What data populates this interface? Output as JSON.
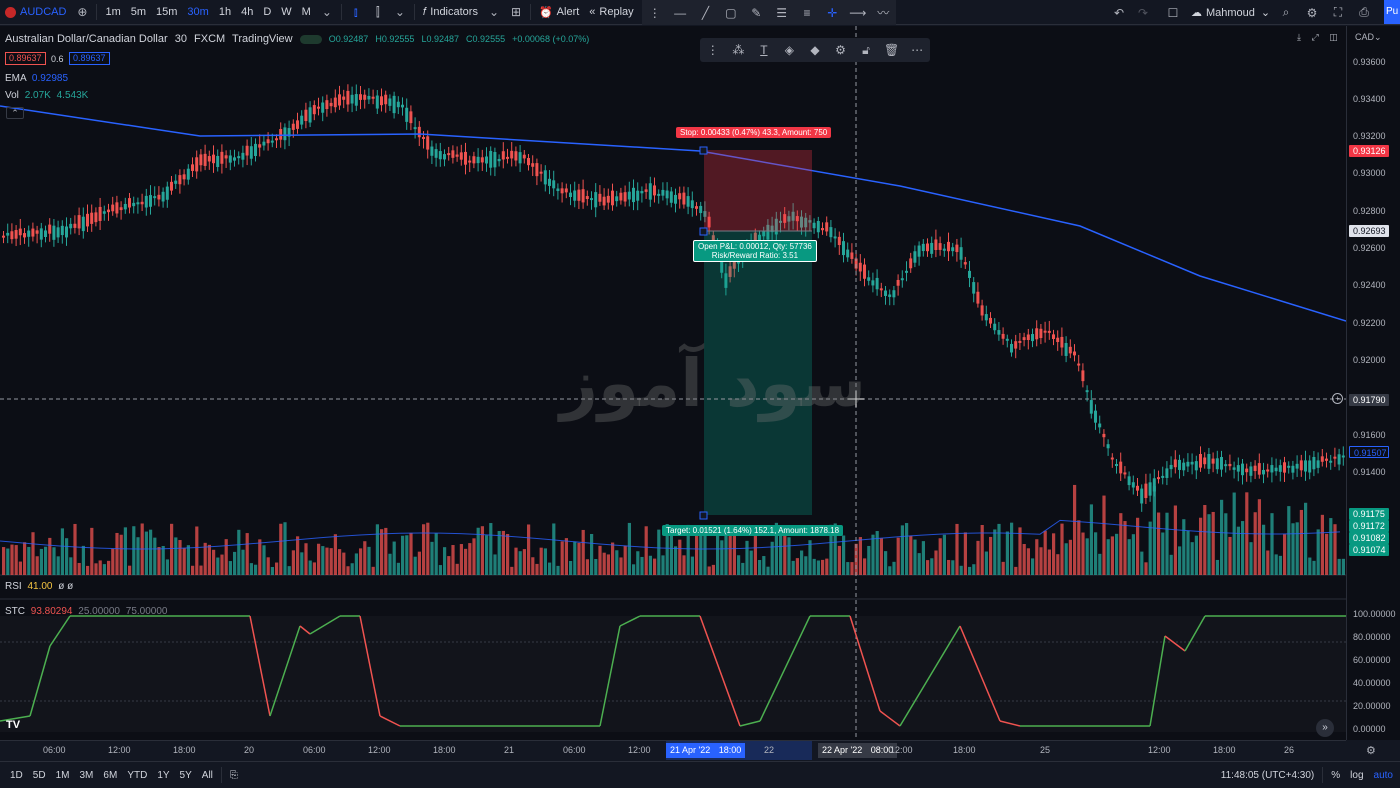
{
  "toolbar": {
    "symbol": "AUDCAD",
    "timeframes": [
      "1m",
      "5m",
      "15m",
      "30m",
      "1h",
      "4h",
      "D",
      "W",
      "M"
    ],
    "active_timeframe": "30m",
    "indicators_label": "Indicators",
    "alert_label": "Alert",
    "replay_label": "Replay",
    "user_name": "Mahmoud",
    "publish_label": "Pu"
  },
  "legend": {
    "instrument": "Australian Dollar/Canadian Dollar",
    "interval": "30",
    "source": "FXCM",
    "platform": "TradingView",
    "open": "O0.92487",
    "high": "H0.92555",
    "low": "L0.92487",
    "close": "C0.92555",
    "change": "+0.00068 (+0.07%)",
    "bid": "0.89637",
    "spread": "0.6",
    "ask": "0.89637"
  },
  "indicators": {
    "ema_label": "EMA",
    "ema_value": "0.92985",
    "vol_label": "Vol",
    "vol_value1": "2.07K",
    "vol_value2": "4.543K",
    "rsi_label": "RSI",
    "rsi_value": "41.00",
    "rsi_extra": "ø ø",
    "stc_label": "STC",
    "stc_value": "93.80294",
    "stc_param1": "25.00000",
    "stc_param2": "75.00000"
  },
  "position": {
    "stop_label": "Stop: 0.00433 (0.47%) 43.3, Amount: 750",
    "open_label_line1": "Open P&L: 0.00012, Qty: 57736",
    "open_label_line2": "Risk/Reward Ratio: 3.51",
    "target_label": "Target: 0.01521 (1.64%) 152.1, Amount: 1878.18"
  },
  "watermark": "سود آموز",
  "price_scale": {
    "currency": "CAD",
    "labels": [
      "0.93600",
      "0.93400",
      "0.93200",
      "0.93000",
      "0.92800",
      "0.92600",
      "0.92400",
      "0.92200",
      "0.92000",
      "0.91600",
      "0.91400"
    ],
    "stop_tag": "0.93126",
    "current_tag": "0.92693",
    "crosshair_tag": "0.91790",
    "ema_tag": "0.91507",
    "vol_tags": [
      "0.91175",
      "0.91172",
      "0.91082",
      "0.91074"
    ],
    "stc_labels": [
      "100.00000",
      "80.00000",
      "60.00000",
      "40.00000",
      "20.00000",
      "0.00000"
    ]
  },
  "time_axis": {
    "labels": [
      "06:00",
      "12:00",
      "18:00",
      "20",
      "06:00",
      "12:00",
      "18:00",
      "21",
      "06:00",
      "12:00",
      "22",
      "12:00",
      "18:00",
      "25",
      "12:00",
      "18:00",
      "26"
    ],
    "selection_start_date": "21 Apr '22",
    "selection_start_time": "18:00",
    "crosshair_date": "22 Apr '22",
    "crosshair_time": "08:00"
  },
  "bottombar": {
    "ranges": [
      "1D",
      "5D",
      "1M",
      "3M",
      "6M",
      "YTD",
      "1Y",
      "5Y",
      "All"
    ],
    "clock": "11:48:05 (UTC+4:30)",
    "percent": "%",
    "log": "log",
    "auto": "auto"
  },
  "colors": {
    "up": "#26a69a",
    "down": "#ef5350",
    "ema": "#2962ff",
    "background": "#0c0e15"
  }
}
